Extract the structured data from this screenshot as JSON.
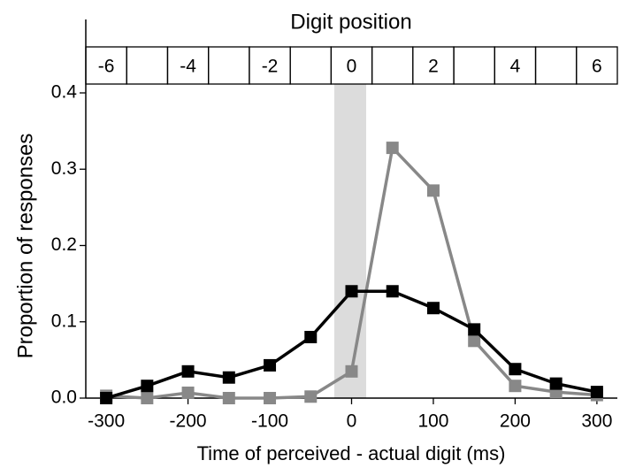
{
  "chart_data": {
    "type": "line",
    "xlabel": "Time of perceived - actual digit (ms)",
    "ylabel": "Proportion of responses",
    "top_axis": {
      "label": "Digit position",
      "categories": [
        "-6",
        null,
        "-4",
        null,
        "-2",
        null,
        "0",
        null,
        "2",
        null,
        "4",
        null,
        "6"
      ]
    },
    "x": [
      -300,
      -250,
      -200,
      -150,
      -100,
      -50,
      0,
      50,
      100,
      150,
      200,
      250,
      300
    ],
    "series": [
      {
        "color": "#888888",
        "values": [
          0.003,
          0.0,
          0.007,
          0.0,
          0.0,
          0.002,
          0.035,
          0.328,
          0.272,
          0.075,
          0.016,
          0.008,
          0.004
        ]
      },
      {
        "color": "#000000",
        "values": [
          0.0,
          0.016,
          0.035,
          0.027,
          0.043,
          0.08,
          0.14,
          0.14,
          0.118,
          0.09,
          0.038,
          0.019,
          0.008
        ]
      }
    ],
    "xlim": [
      -325,
      325
    ],
    "ylim": [
      0,
      0.4
    ],
    "xticks": [
      -300,
      -200,
      -100,
      0,
      100,
      200,
      300
    ],
    "yticks": [
      {
        "value": 0,
        "label": "0.0"
      },
      0.1,
      0.2,
      0.3,
      0.4
    ]
  }
}
